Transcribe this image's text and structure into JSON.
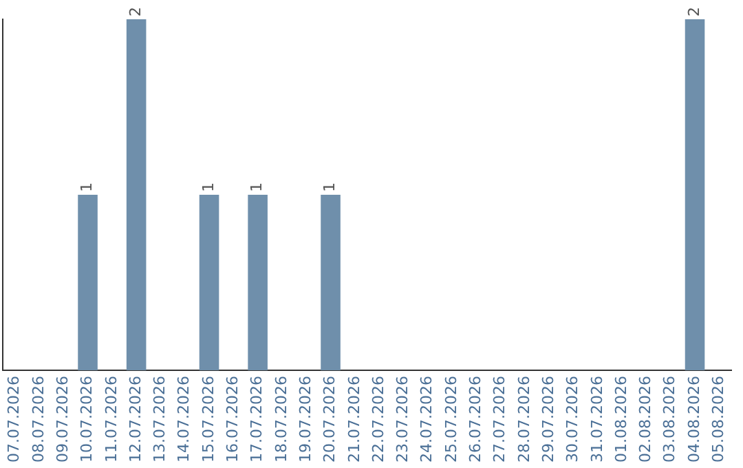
{
  "chart_data": {
    "type": "bar",
    "categories": [
      "07.07.2026",
      "08.07.2026",
      "09.07.2026",
      "10.07.2026",
      "11.07.2026",
      "12.07.2026",
      "13.07.2026",
      "14.07.2026",
      "15.07.2026",
      "16.07.2026",
      "17.07.2026",
      "18.07.2026",
      "19.07.2026",
      "20.07.2026",
      "21.07.2026",
      "22.07.2026",
      "23.07.2026",
      "24.07.2026",
      "25.07.2026",
      "26.07.2026",
      "27.07.2026",
      "28.07.2026",
      "29.07.2026",
      "30.07.2026",
      "31.07.2026",
      "01.08.2026",
      "02.08.2026",
      "03.08.2026",
      "04.08.2026",
      "05.08.2026"
    ],
    "values": [
      0,
      0,
      0,
      1,
      0,
      2,
      0,
      0,
      1,
      0,
      1,
      0,
      0,
      1,
      0,
      0,
      0,
      0,
      0,
      0,
      0,
      0,
      0,
      0,
      0,
      0,
      0,
      0,
      2,
      0
    ],
    "value_labels": [
      null,
      null,
      null,
      "1",
      null,
      "2",
      null,
      null,
      "1",
      null,
      "1",
      null,
      null,
      "1",
      null,
      null,
      null,
      null,
      null,
      null,
      null,
      null,
      null,
      null,
      null,
      null,
      null,
      null,
      "2",
      null
    ],
    "color": "#6f8fab",
    "tick_labels": "x",
    "grid": false,
    "legend": false
  }
}
